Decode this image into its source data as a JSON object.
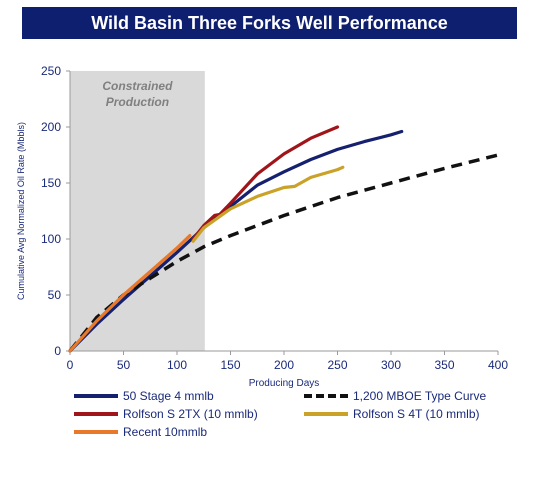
{
  "title": "Wild Basin Three Forks Well Performance",
  "chart_data": {
    "type": "line",
    "xlabel": "Producing Days",
    "ylabel": "Cumulative Avg Normalized Oil Rate (Mbbls)",
    "xlim": [
      0,
      400
    ],
    "ylim": [
      0,
      250
    ],
    "xticks": [
      "0",
      "50",
      "100",
      "150",
      "200",
      "250",
      "300",
      "350",
      "400"
    ],
    "yticks": [
      "0",
      "50",
      "100",
      "150",
      "200",
      "250"
    ],
    "grid": false,
    "shaded_region": {
      "x": [
        0,
        126
      ],
      "label_line1": "Constrained",
      "label_line2": "Production",
      "color": "#d9d9d9"
    },
    "series": [
      {
        "name": "50 Stage 4 mmlb",
        "color": "#15206e",
        "dashed": false,
        "x": [
          0,
          25,
          50,
          75,
          100,
          125,
          150,
          175,
          200,
          225,
          250,
          275,
          300,
          310
        ],
        "y": [
          0,
          24,
          46,
          67,
          88,
          110,
          129,
          148,
          160,
          171,
          180,
          187,
          193,
          196
        ]
      },
      {
        "name": "1,200 MBOE Type Curve",
        "color": "#111111",
        "dashed": true,
        "x": [
          0,
          25,
          50,
          75,
          100,
          125,
          150,
          200,
          250,
          300,
          350,
          400
        ],
        "y": [
          0,
          30,
          50,
          65,
          80,
          93,
          103,
          121,
          137,
          150,
          163,
          175
        ]
      },
      {
        "name": "Rolfson S 2TX (10 mmlb)",
        "color": "#a0151a",
        "dashed": false,
        "x": [
          115,
          125,
          135,
          140,
          150,
          175,
          200,
          225,
          250
        ],
        "y": [
          100,
          112,
          121,
          122,
          132,
          158,
          176,
          190,
          200
        ]
      },
      {
        "name": "Rolfson S 4T (10 mmlb)",
        "color": "#c9a227",
        "dashed": false,
        "x": [
          115,
          125,
          150,
          175,
          200,
          210,
          225,
          250,
          255
        ],
        "y": [
          98,
          110,
          127,
          138,
          146,
          147,
          155,
          162,
          164
        ]
      },
      {
        "name": "Recent 10mmlb",
        "color": "#e8782a",
        "dashed": false,
        "x": [
          0,
          25,
          50,
          75,
          100,
          112
        ],
        "y": [
          0,
          27,
          50,
          71,
          92,
          103
        ]
      }
    ],
    "legend_position": "bottom"
  }
}
